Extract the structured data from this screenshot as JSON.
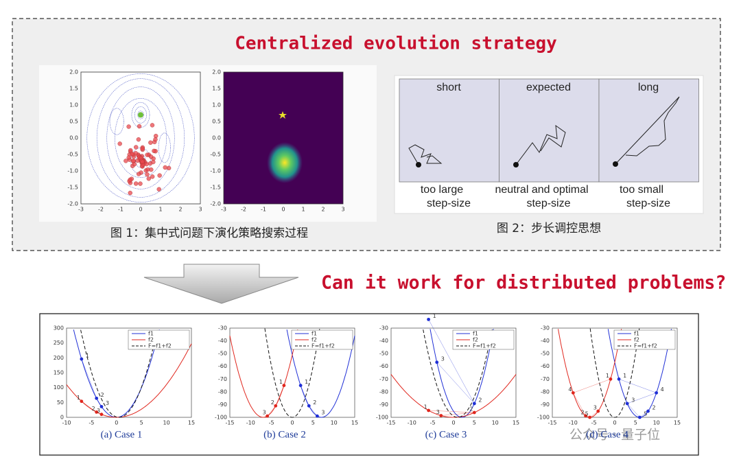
{
  "header": {
    "title": "Centralized evolution strategy"
  },
  "figure1": {
    "caption": "图 1：集中式问题下演化策略搜索过程",
    "plots": [
      {
        "xticks": [
          "-3",
          "-2",
          "-1",
          "0",
          "1",
          "2",
          "3"
        ],
        "yticks": [
          "2.0",
          "1.5",
          "1.0",
          "0.5",
          "0.0",
          "-0.5",
          "-1.0",
          "-1.5",
          "-2.0"
        ]
      },
      {
        "xticks": [
          "-3",
          "-2",
          "-1",
          "0",
          "1",
          "2",
          "3"
        ],
        "yticks": [
          "2.0",
          "1.5",
          "1.0",
          "0.5",
          "0.0",
          "-0.5",
          "-1.0",
          "-1.5",
          "-2.0"
        ]
      }
    ]
  },
  "figure2": {
    "caption": "图 2：步长调控思想",
    "panels": [
      {
        "title": "short",
        "caption": [
          "too large",
          "step-size"
        ]
      },
      {
        "title": "expected",
        "caption": [
          "neutral and optimal",
          "step-size"
        ]
      },
      {
        "title": "long",
        "caption": [
          "too small",
          "step-size"
        ]
      }
    ]
  },
  "question": "Can it work for distributed problems?",
  "cases": {
    "legend": [
      "f1",
      "f2",
      "F=f1+f2"
    ],
    "plots": [
      {
        "caption": "(a) Case 1",
        "xticks": [
          "-10",
          "-5",
          "0",
          "5",
          "10",
          "15"
        ],
        "yticks": [
          "300",
          "250",
          "200",
          "150",
          "100",
          "50",
          "0"
        ],
        "points": [
          "1",
          "2",
          "3",
          "1",
          "2",
          "3"
        ]
      },
      {
        "caption": "(b) Case 2",
        "xticks": [
          "-15",
          "-10",
          "-5",
          "0",
          "5",
          "10",
          "15"
        ],
        "yticks": [
          "-30",
          "-40",
          "-50",
          "-60",
          "-70",
          "-80",
          "-90",
          "-100"
        ],
        "points": [
          "1",
          "2",
          "3",
          "1",
          "2",
          "3"
        ]
      },
      {
        "caption": "(c) Case 3",
        "xticks": [
          "-15",
          "-10",
          "-5",
          "0",
          "5",
          "10",
          "15"
        ],
        "yticks": [
          "-30",
          "-40",
          "-50",
          "-60",
          "-70",
          "-80",
          "-90",
          "-100"
        ],
        "points": [
          "1",
          "2",
          "3",
          "1",
          "2",
          "3"
        ]
      },
      {
        "caption": "(d) Case 4",
        "xticks": [
          "-15",
          "-10",
          "-5",
          "0",
          "5",
          "10",
          "15"
        ],
        "yticks": [
          "-30",
          "-40",
          "-50",
          "-60",
          "-70",
          "-80",
          "-90",
          "-100"
        ],
        "points": [
          "1",
          "4",
          "2",
          "5",
          "3",
          "1",
          "4",
          "3",
          "5",
          "2"
        ]
      }
    ]
  },
  "watermark": "公众号 · 量子位"
}
